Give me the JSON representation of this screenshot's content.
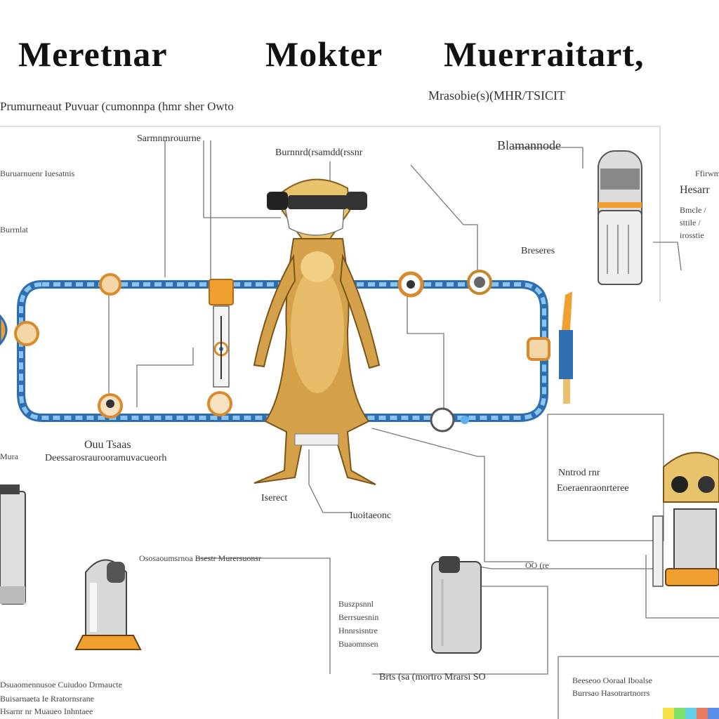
{
  "titles": [
    "Meretnar",
    "Mokter",
    "Muerraitart,"
  ],
  "subtitle_left": "Prumurneaut   Puvuar   (cumonnpa   (hmr sher   Owto",
  "subtitle_right": "Mrasobie(s)(MHR/TSICIT",
  "labels": {
    "top_center": "Sarmnmrouurne",
    "top_mid": "Burnnrd(rsamdd(rssnr",
    "top_right": "Blamannode",
    "right_a": "Hesarr",
    "right_b": "Ffirwmna",
    "right_small": "Bmcle / sttile / irosstie",
    "left_a": "Buruarnuenr Iuesatnis",
    "left_b": "Burrnlat",
    "left_c": "Mura",
    "mid_left_head": "Ouu Tsaas",
    "mid_left_body": "Deessarosraurooramuvacueorh",
    "mid_center": "Iserect",
    "mid_center_b": "Iuoitaeonc",
    "right_box_a": "Nntrod rnr",
    "right_box_b": "Eoeraenraonrteree",
    "right_b2": "Breseres",
    "bottom_center_head": "Ososaoumsrnoa Bsestr Murersuonsr",
    "stack_1": "Buszpsnnl",
    "stack_2": "Berrsuesnin",
    "stack_3": "Hnnrsisntre",
    "stack_4": "Buaomnsen",
    "bottom_center": "Brts (sa (mortro Mrarsi SO",
    "bottom_right_1": "Beeseoo Ooraal Iboalse",
    "bottom_right_2": "Burrsao Hasotrartnorrs",
    "bottom_right_box": "OO (re",
    "bottom_left_1": "Dsuaomennusoe Cuiudoo Drmaucte",
    "bottom_left_2": "Buisarnaeta Ie Rratornsrane",
    "bottom_left_3": "Hsarnr nr Muaueo Inhntaee"
  },
  "colors": {
    "pipe": "#3f8fd8",
    "meerkat": "#d4a04a",
    "accent": "#f0a030",
    "metal": "#c8c8c8"
  },
  "palette": [
    "#f5e04a",
    "#7ee26b",
    "#5fd0e8",
    "#e87a5f",
    "#5a8ee8"
  ]
}
